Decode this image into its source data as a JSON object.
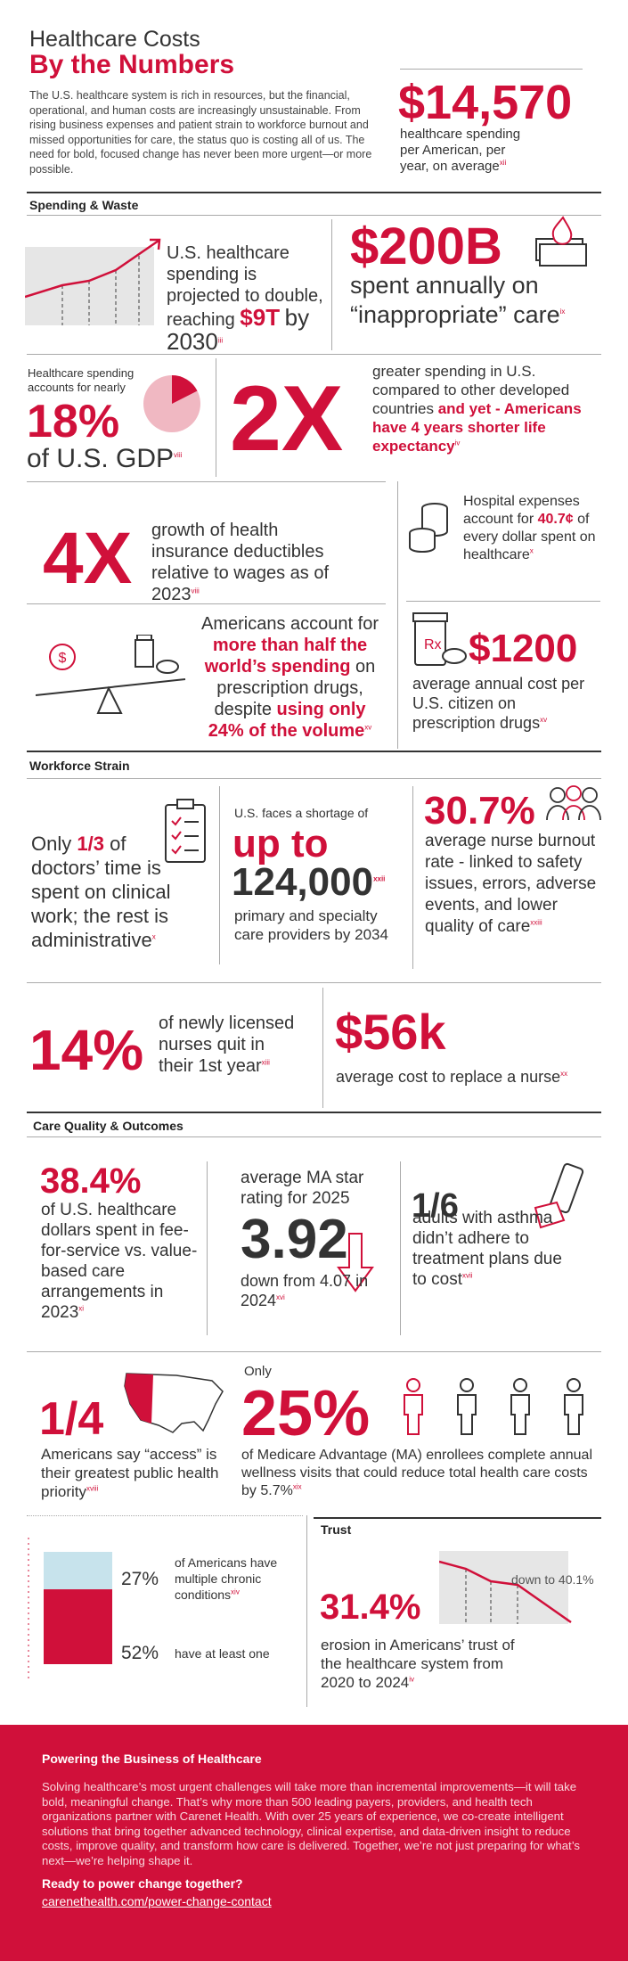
{
  "header": {
    "title_line1": "Healthcare Costs",
    "title_line2": "By the Numbers",
    "intro": "The U.S. healthcare system is rich in resources, but the financial, operational, and human costs are increasingly unsustainable. From rising business expenses and patient strain to workforce burnout and missed opportunities for care, the status quo is costing all of us. The need for bold, focused change has never been more urgent—or more possible."
  },
  "hero": {
    "value": "$14,570",
    "text": "healthcare spending per American, per year, on average",
    "note": "xii"
  },
  "spending_waste": {
    "heading": "Spending & Waste",
    "projection": {
      "text": "U.S. healthcare spending is projected to double, reaching",
      "highlight": "$9T",
      "tail": "by 2030",
      "note": "iii"
    },
    "inappropriate": {
      "value": "$200B",
      "text": "spent annually on “inappropriate” care",
      "note": "ix"
    },
    "gdp": {
      "intro": "Healthcare spending accounts for nearly",
      "value": "18%",
      "tail": "of U.S. GDP",
      "note": "viii"
    },
    "two_x": {
      "value": "2X",
      "text": "greater spending in U.S. compared to other developed countries",
      "highlight": "and yet - Americans have 4 years shorter life expectancy",
      "note": "iv"
    },
    "four_x": {
      "value": "4X",
      "text": "growth of health insurance deductibles relative to wages as of 2023",
      "note": "viii"
    },
    "hospital": {
      "pre": "Hospital expenses account for",
      "highlight": "40.7¢",
      "post": "of every dollar spent on healthcare",
      "note": "x"
    },
    "drugs": {
      "pre": "Americans account for",
      "highlight1": "more than half the world’s spending",
      "mid": "on prescription drugs, despite",
      "highlight2": "using only 24% of the volume",
      "note": "xv"
    },
    "drug_cost": {
      "value": "$1200",
      "text": "average annual cost per U.S. citizen on prescription drugs",
      "note": "xv"
    }
  },
  "workforce": {
    "heading": "Workforce Strain",
    "doctors": {
      "pre": "Only",
      "highlight": "1/3",
      "post": "of doctors’ time is spent on clinical work; the rest is administrative",
      "note": "x"
    },
    "shortage": {
      "pre": "U.S. faces a shortage of",
      "highlight": "up to",
      "value": "124,000",
      "note": "xxii",
      "post": "primary and specialty care providers by 2034"
    },
    "burnout": {
      "value": "30.7%",
      "text": "average nurse burnout rate - linked to safety issues, errors, adverse events, and lower quality of care",
      "note": "xxiii"
    },
    "quit": {
      "value": "14%",
      "text": "of newly licensed nurses quit in their 1st year",
      "note": "xiii"
    },
    "replace": {
      "value": "$56k",
      "text": "average cost to replace a nurse",
      "note": "xx"
    }
  },
  "care": {
    "heading": "Care Quality & Outcomes",
    "ffs": {
      "value": "38.4%",
      "text": "of U.S. healthcare dollars spent in fee-for-service vs. value-based care arrangements in 2023",
      "note": "xi"
    },
    "star": {
      "pre": "average MA star rating for 2025",
      "value": "3.92",
      "post": "down from 4.07 in 2024",
      "note": "xvi"
    },
    "asthma": {
      "value": "1/6",
      "text": "adults with asthma didn’t adhere to treatment plans due to cost",
      "note": "xvii"
    },
    "access": {
      "value": "1/4",
      "text": "Americans say “access” is their greatest public health priority",
      "note": "xviii"
    },
    "wellness": {
      "pre": "Only",
      "value": "25%",
      "text": "of Medicare Advantage (MA) enrollees complete annual wellness visits that could reduce total health care costs by 5.7%",
      "note": "xix"
    },
    "chronic": {
      "items": [
        {
          "value": "27%",
          "text": "of Americans have multiple chronic conditions",
          "note": "xiv"
        },
        {
          "value": "52%",
          "text": "have at least one"
        }
      ]
    },
    "trust": {
      "heading": "Trust",
      "annotation": "down to 40.1%",
      "value": "31.4%",
      "text": "erosion in Americans’ trust of the healthcare system from 2020 to 2024",
      "note": "iv"
    }
  },
  "footer": {
    "heading": "Powering the Business of Healthcare",
    "body": "Solving healthcare’s most urgent challenges will take more than incremental improvements—it will take bold, meaningful change. That’s why more than 500 leading payers, providers, and health tech organizations partner with Carenet Health. With over 25 years of experience, we co-create intelligent solutions that bring together advanced technology, clinical expertise, and data-driven insight to reduce costs, improve quality, and transform how care is delivered. Together, we’re not just preparing for what’s next—we’re helping shape it.",
    "cta": "Ready to power change together?",
    "link": "carenethealth.com/power-change-contact"
  }
}
